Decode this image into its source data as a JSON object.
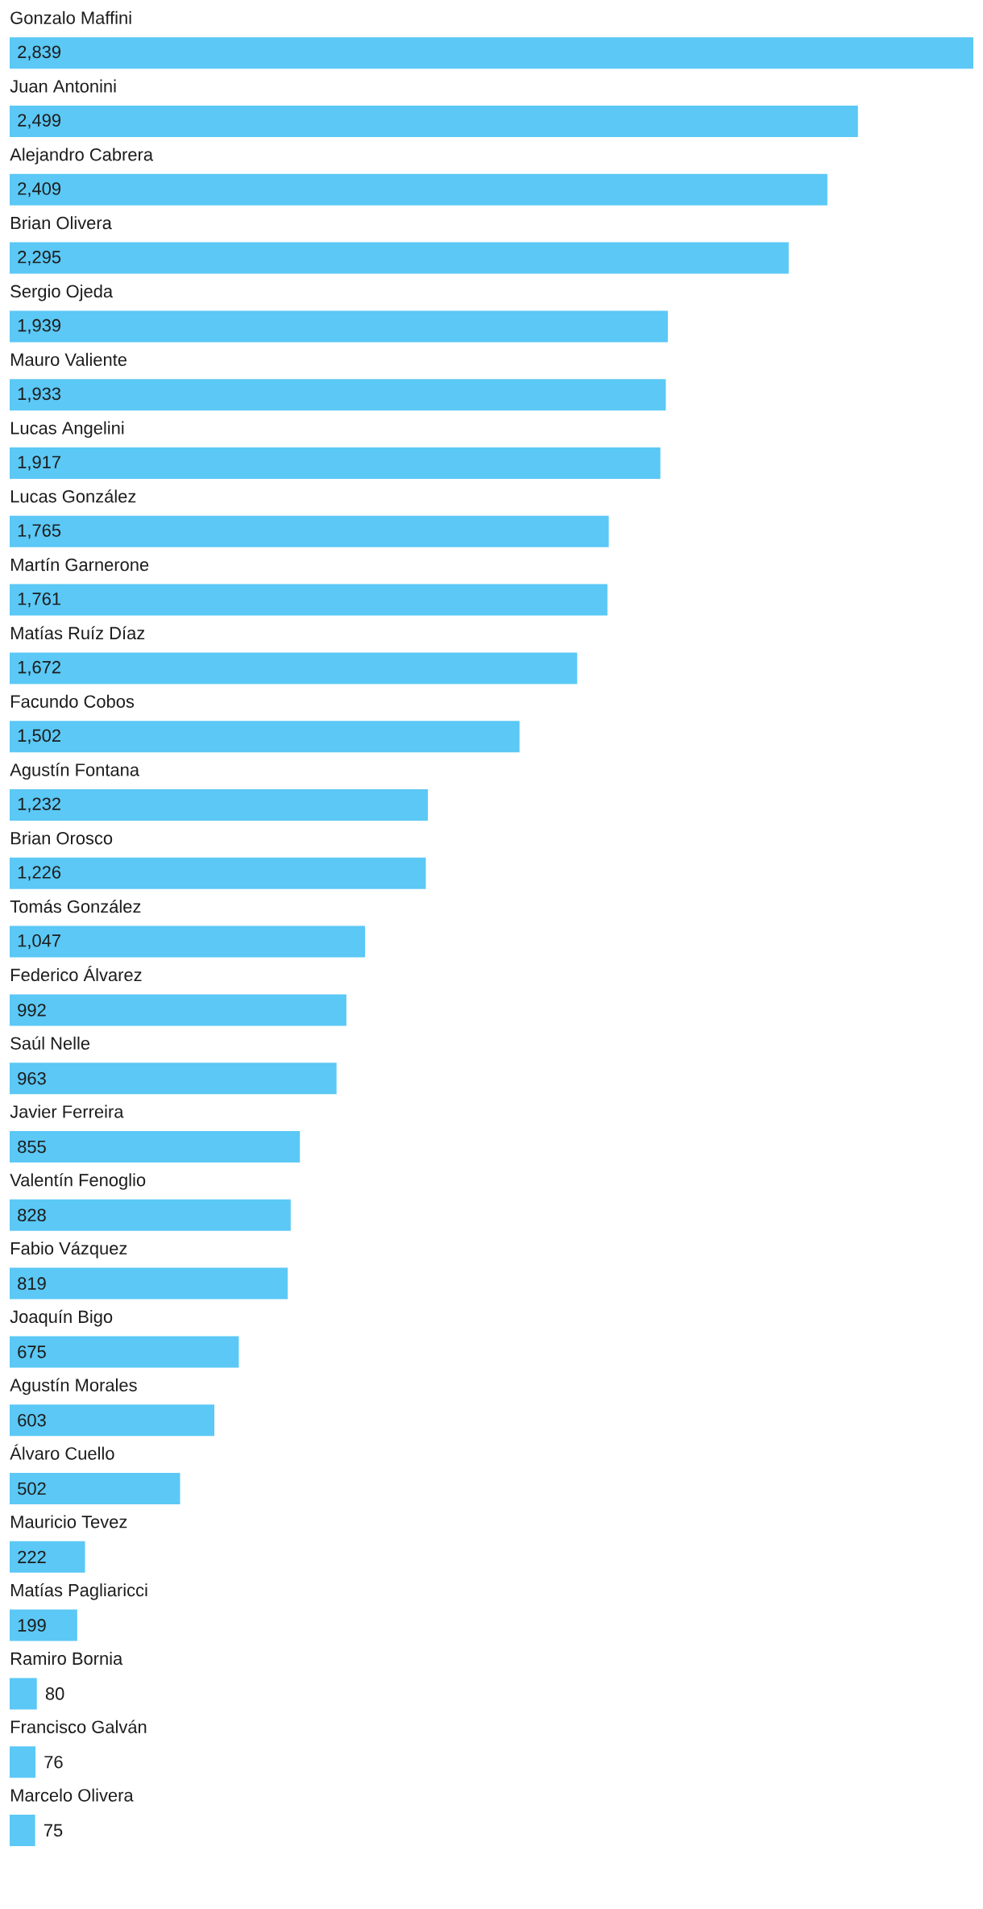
{
  "chart_data": {
    "type": "bar",
    "orientation": "horizontal",
    "color": "#5bc8f5",
    "categories": [
      "Gonzalo Maffini",
      "Juan Antonini",
      "Alejandro Cabrera",
      "Brian Olivera",
      "Sergio Ojeda",
      "Mauro Valiente",
      "Lucas Angelini",
      "Lucas González",
      "Martín Garnerone",
      "Matías Ruíz Díaz",
      "Facundo Cobos",
      "Agustín Fontana",
      "Brian Orosco",
      "Tomás González",
      "Federico Álvarez",
      "Saúl Nelle",
      "Javier Ferreira",
      "Valentín Fenoglio",
      "Fabio Vázquez",
      "Joaquín Bigo",
      "Agustín Morales",
      "Álvaro Cuello",
      "Mauricio Tevez",
      "Matías Pagliaricci",
      "Ramiro Bornia",
      "Francisco Galván",
      "Marcelo Olivera"
    ],
    "values": [
      2839,
      2499,
      2409,
      2295,
      1939,
      1933,
      1917,
      1765,
      1761,
      1672,
      1502,
      1232,
      1226,
      1047,
      992,
      963,
      855,
      828,
      819,
      675,
      603,
      502,
      222,
      199,
      80,
      76,
      75
    ],
    "value_labels": [
      "2,839",
      "2,499",
      "2,409",
      "2,295",
      "1,939",
      "1,933",
      "1,917",
      "1,765",
      "1,761",
      "1,672",
      "1,502",
      "1,232",
      "1,226",
      "1,047",
      "992",
      "963",
      "855",
      "828",
      "819",
      "675",
      "603",
      "502",
      "222",
      "199",
      "80",
      "76",
      "75"
    ]
  }
}
